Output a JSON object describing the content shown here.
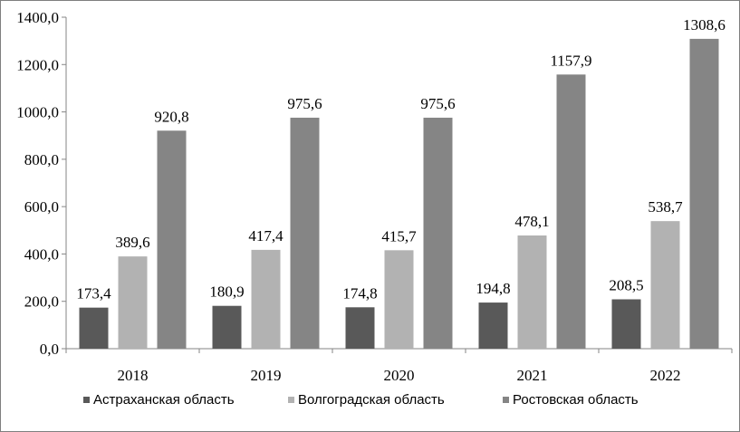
{
  "chart_data": {
    "type": "bar",
    "categories": [
      "2018",
      "2019",
      "2020",
      "2021",
      "2022"
    ],
    "series": [
      {
        "name": "Астраханская область",
        "values": [
          173.4,
          180.9,
          174.8,
          194.8,
          208.5
        ],
        "labels": [
          "173,4",
          "180,9",
          "174,8",
          "194,8",
          "208,5"
        ],
        "color": "#595959"
      },
      {
        "name": "Волгоградская область",
        "values": [
          389.6,
          417.4,
          415.7,
          478.1,
          538.7
        ],
        "labels": [
          "389,6",
          "417,4",
          "415,7",
          "478,1",
          "538,7"
        ],
        "color": "#b2b2b2"
      },
      {
        "name": "Ростовская область",
        "values": [
          920.8,
          975.6,
          975.6,
          1157.9,
          1308.6
        ],
        "labels": [
          "920,8",
          "975,6",
          "975,6",
          "1157,9",
          "1308,6"
        ],
        "color": "#858585"
      }
    ],
    "ylim": [
      0,
      1400
    ],
    "yticks": [
      0,
      200,
      400,
      600,
      800,
      1000,
      1200,
      1400
    ],
    "ytick_labels": [
      "0,0",
      "200,0",
      "400,0",
      "600,0",
      "800,0",
      "1000,0",
      "1200,0",
      "1400,0"
    ],
    "grid": false,
    "legend_position": "bottom",
    "axis_color": "#868686"
  }
}
